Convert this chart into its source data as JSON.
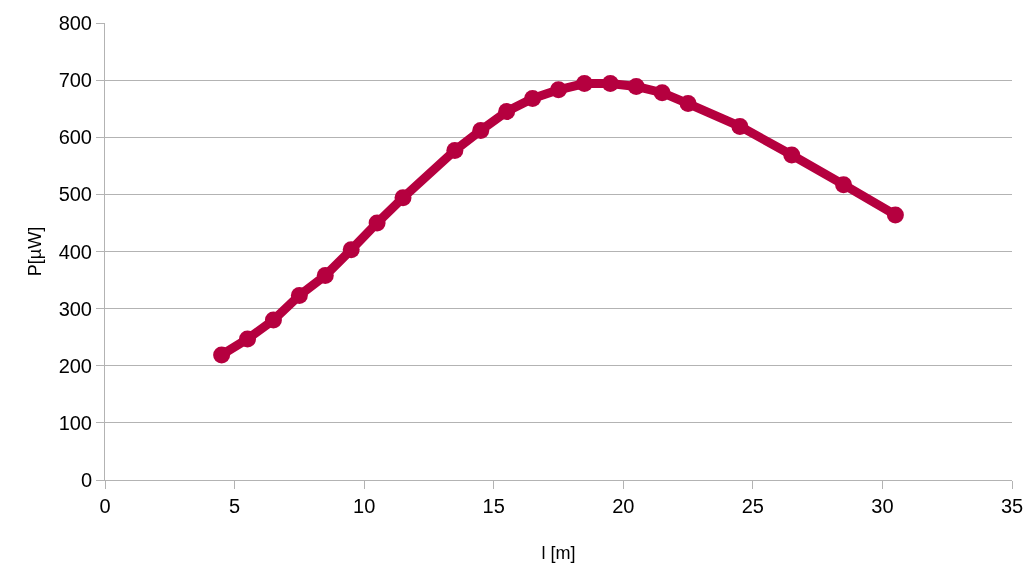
{
  "chart_data": {
    "type": "line",
    "xlabel": "l [m]",
    "ylabel": "P[µW]",
    "x": [
      4.5,
      5.5,
      6.5,
      7.5,
      8.5,
      9.5,
      10.5,
      11.5,
      13.5,
      14.5,
      15.5,
      16.5,
      17.5,
      18.5,
      19.5,
      20.5,
      21.5,
      22.5,
      24.5,
      26.5,
      28.5,
      30.5
    ],
    "series": [
      {
        "color": "#b5003f",
        "values": [
          219,
          247,
          280,
          323,
          358,
          403,
          450,
          494,
          577,
          612,
          645,
          668,
          683,
          694,
          694,
          689,
          678,
          659,
          619,
          569,
          517,
          464
        ]
      }
    ],
    "xlim": [
      0,
      35
    ],
    "xticks": [
      0,
      5,
      10,
      15,
      20,
      25,
      30,
      35
    ],
    "ylim": [
      0,
      800
    ],
    "yticks": [
      0,
      100,
      200,
      300,
      400,
      500,
      600,
      700,
      800
    ],
    "grid": "y",
    "marker": "circle",
    "line_style": "solid"
  }
}
